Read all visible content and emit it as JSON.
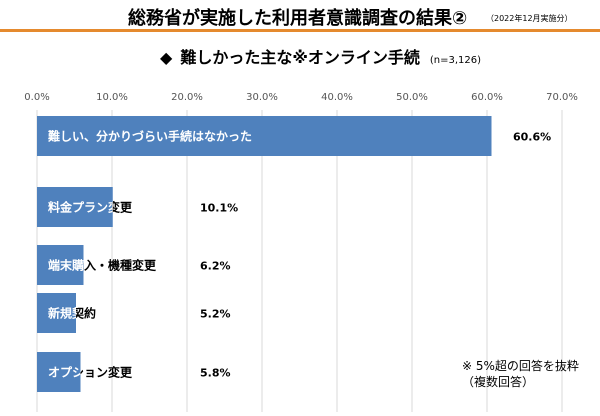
{
  "header": {
    "title": "総務省が実施した利用者意識調査の結果②",
    "note": "（2022年12月実施分）"
  },
  "subtitle": {
    "marker": "◆",
    "text": "難しかった主な※オンライン手続",
    "n": "(n=3,126)"
  },
  "footnote": {
    "line1": "※ 5%超の回答を抜粋",
    "line2": "（複数回答）"
  },
  "colors": {
    "bar": "#4F81BD",
    "accent_rule": "#E58A2E",
    "grid": "#D9D9D9"
  },
  "chart_data": {
    "type": "bar",
    "orientation": "horizontal",
    "categories": [
      "難しい、分かりづらい手続はなかった",
      "料金プラン変更",
      "端末購入・機種変更",
      "新規契約",
      "オプション変更"
    ],
    "values": [
      60.6,
      10.1,
      6.2,
      5.2,
      5.8
    ],
    "value_labels": [
      "60.6%",
      "10.1%",
      "6.2%",
      "5.2%",
      "5.8%"
    ],
    "xlim": [
      0,
      70
    ],
    "xticks": [
      "0.0%",
      "10.0%",
      "20.0%",
      "30.0%",
      "40.0%",
      "50.0%",
      "60.0%",
      "70.0%"
    ],
    "grid": true
  }
}
